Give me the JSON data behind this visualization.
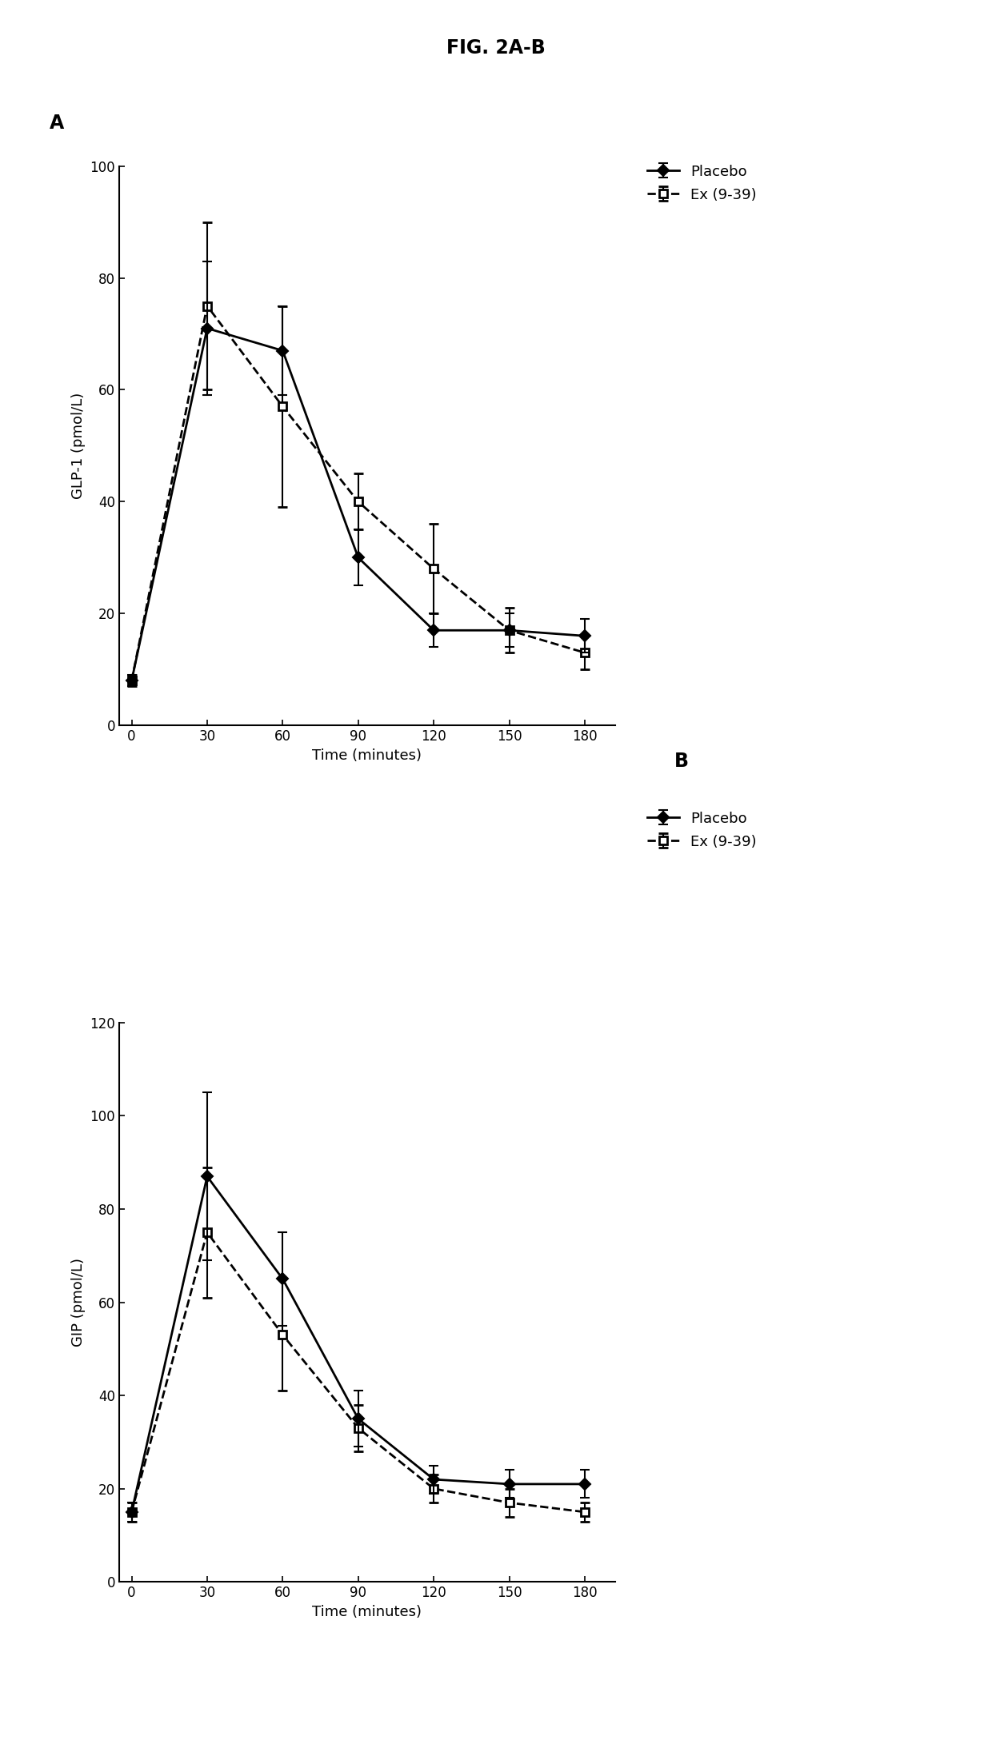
{
  "title": "FIG. 2A-B",
  "panel_A": {
    "label": "A",
    "ylabel": "GLP-1 (pmol/L)",
    "xlabel": "Time (minutes)",
    "ylim": [
      0,
      100
    ],
    "yticks": [
      0,
      20,
      40,
      60,
      80,
      100
    ],
    "xticks": [
      0,
      30,
      60,
      90,
      120,
      150,
      180
    ],
    "placebo": {
      "x": [
        0,
        30,
        60,
        90,
        120,
        150,
        180
      ],
      "y": [
        8,
        71,
        67,
        30,
        17,
        17,
        16
      ],
      "yerr": [
        1,
        12,
        8,
        5,
        3,
        3,
        3
      ],
      "label": "Placebo"
    },
    "ex939": {
      "x": [
        0,
        30,
        60,
        90,
        120,
        150,
        180
      ],
      "y": [
        8,
        75,
        57,
        40,
        28,
        17,
        13
      ],
      "yerr": [
        1,
        15,
        18,
        5,
        8,
        4,
        3
      ],
      "label": "Ex (9-39)"
    }
  },
  "panel_B": {
    "label": "B",
    "ylabel": "GIP (pmol/L)",
    "xlabel": "Time (minutes)",
    "ylim": [
      0,
      120
    ],
    "yticks": [
      0,
      20,
      40,
      60,
      80,
      100,
      120
    ],
    "xticks": [
      0,
      30,
      60,
      90,
      120,
      150,
      180
    ],
    "placebo": {
      "x": [
        0,
        30,
        60,
        90,
        120,
        150,
        180
      ],
      "y": [
        15,
        87,
        65,
        35,
        22,
        21,
        21
      ],
      "yerr": [
        2,
        18,
        10,
        6,
        3,
        3,
        3
      ],
      "label": "Placebo"
    },
    "ex939": {
      "x": [
        0,
        30,
        60,
        90,
        120,
        150,
        180
      ],
      "y": [
        15,
        75,
        53,
        33,
        20,
        17,
        15
      ],
      "yerr": [
        2,
        14,
        12,
        5,
        3,
        3,
        2
      ],
      "label": "Ex (9-39)"
    }
  },
  "line_color": "#000000",
  "background_color": "#ffffff",
  "title_fontsize": 17,
  "label_fontsize": 13,
  "tick_fontsize": 12,
  "legend_fontsize": 13,
  "panel_label_fontsize": 17
}
